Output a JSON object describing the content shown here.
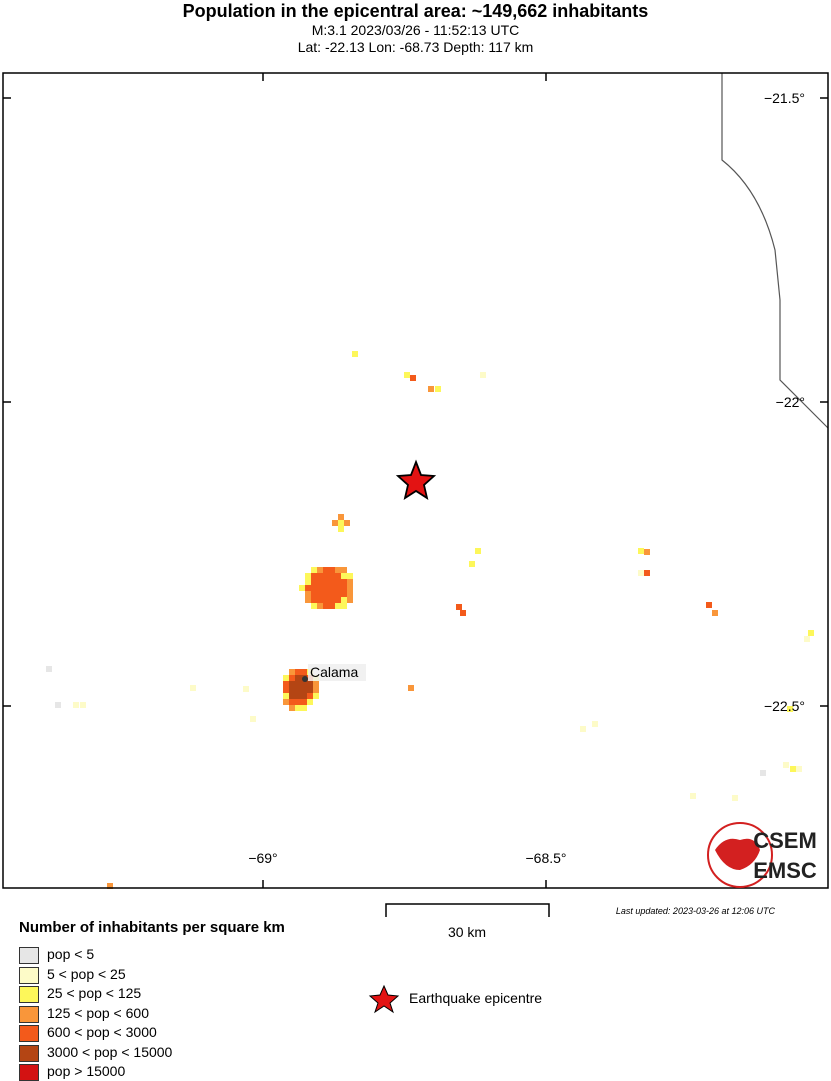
{
  "header": {
    "title": "Population in the epicentral area: ~149,662 inhabitants",
    "line1": "M:3.1 2023/03/26 - 11:52:13 UTC",
    "line2": "Lat: -22.13 Lon: -68.73 Depth: 117 km"
  },
  "map": {
    "lon_ticks": [
      "−69°",
      "−68.5°"
    ],
    "lat_ticks": [
      "−21.5°",
      "−22°",
      "−22.5°"
    ],
    "city": "Calama",
    "epicentre": {
      "lat": -22.13,
      "lon": -68.73
    },
    "logo": [
      "CSEM",
      "EMSC"
    ]
  },
  "scale": {
    "label": "30 km"
  },
  "updated": "Last updated: 2023-03-26 at 12:06 UTC",
  "legend": {
    "title": "Number of inhabitants per square km",
    "items": [
      {
        "label": "pop < 5",
        "color": "#e6e6e6"
      },
      {
        "label": "5 < pop < 25",
        "color": "#fdfbc8"
      },
      {
        "label": "25 < pop < 125",
        "color": "#fdf75a"
      },
      {
        "label": "125 < pop < 600",
        "color": "#f9963a"
      },
      {
        "label": "600 < pop < 3000",
        "color": "#f35a1b"
      },
      {
        "label": "3000 < pop < 15000",
        "color": "#b44514"
      },
      {
        "label": "pop > 15000",
        "color": "#d31212"
      }
    ],
    "epicentre_label": "Earthquake epicentre"
  }
}
